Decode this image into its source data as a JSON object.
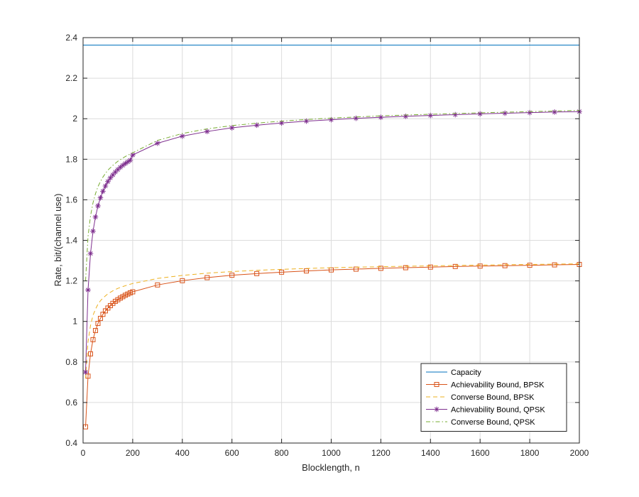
{
  "chart_data": {
    "type": "line",
    "title": "",
    "xlabel": "Blocklength, n",
    "ylabel": "Rate, bit/(channel use)",
    "xlim": [
      0,
      2000
    ],
    "ylim": [
      0.4,
      2.4
    ],
    "xticks": [
      0,
      200,
      400,
      600,
      800,
      1000,
      1200,
      1400,
      1600,
      1800,
      2000
    ],
    "yticks": [
      0.4,
      0.6,
      0.8,
      1,
      1.2,
      1.4,
      1.6,
      1.8,
      2,
      2.2,
      2.4
    ],
    "xtick_labels": [
      "0",
      "200",
      "400",
      "600",
      "800",
      "1000",
      "1200",
      "1400",
      "1600",
      "1800",
      "2000"
    ],
    "ytick_labels": [
      "0.4",
      "0.6",
      "0.8",
      "1",
      "1.2",
      "1.4",
      "1.6",
      "1.8",
      "2",
      "2.2",
      "2.4"
    ],
    "grid": true,
    "legend_position": "bottom-right",
    "series": [
      {
        "name": "Capacity",
        "color": "#0072BD",
        "line_style": "solid",
        "marker": "none",
        "x": [
          0,
          2000
        ],
        "y": [
          2.363,
          2.363
        ]
      },
      {
        "name": "Achievability Bound, BPSK",
        "color": "#D95319",
        "line_style": "solid",
        "marker": "square",
        "x": [
          10,
          20,
          30,
          40,
          50,
          60,
          70,
          80,
          90,
          100,
          110,
          120,
          130,
          140,
          150,
          160,
          170,
          180,
          190,
          200,
          300,
          400,
          500,
          600,
          700,
          800,
          900,
          1000,
          1100,
          1200,
          1300,
          1400,
          1500,
          1600,
          1700,
          1800,
          1900,
          2000
        ],
        "y": [
          0.48,
          0.73,
          0.84,
          0.91,
          0.955,
          0.99,
          1.015,
          1.035,
          1.052,
          1.066,
          1.078,
          1.089,
          1.099,
          1.107,
          1.115,
          1.122,
          1.129,
          1.135,
          1.141,
          1.146,
          1.18,
          1.201,
          1.216,
          1.228,
          1.236,
          1.243,
          1.249,
          1.254,
          1.258,
          1.262,
          1.265,
          1.268,
          1.271,
          1.273,
          1.275,
          1.277,
          1.279,
          1.281
        ]
      },
      {
        "name": "Converse Bound, BPSK",
        "color": "#EDB120",
        "line_style": "dashed",
        "marker": "none",
        "x": [
          10,
          20,
          30,
          40,
          50,
          60,
          70,
          80,
          90,
          100,
          120,
          140,
          160,
          180,
          200,
          300,
          400,
          500,
          600,
          700,
          800,
          900,
          1000,
          1200,
          1400,
          1600,
          1800,
          2000
        ],
        "y": [
          0.72,
          0.9,
          0.98,
          1.03,
          1.06,
          1.085,
          1.102,
          1.115,
          1.126,
          1.136,
          1.151,
          1.163,
          1.172,
          1.18,
          1.187,
          1.212,
          1.227,
          1.238,
          1.246,
          1.252,
          1.257,
          1.261,
          1.265,
          1.27,
          1.274,
          1.278,
          1.281,
          1.284
        ]
      },
      {
        "name": "Achievability Bound, QPSK",
        "color": "#7E2F8E",
        "line_style": "solid",
        "marker": "asterisk",
        "x": [
          10,
          20,
          30,
          40,
          50,
          60,
          70,
          80,
          90,
          100,
          110,
          120,
          130,
          140,
          150,
          160,
          170,
          180,
          190,
          200,
          300,
          400,
          500,
          600,
          700,
          800,
          900,
          1000,
          1100,
          1200,
          1300,
          1400,
          1500,
          1600,
          1700,
          1800,
          1900,
          2000
        ],
        "y": [
          0.75,
          1.155,
          1.335,
          1.445,
          1.515,
          1.57,
          1.61,
          1.642,
          1.668,
          1.69,
          1.708,
          1.723,
          1.737,
          1.749,
          1.76,
          1.77,
          1.779,
          1.787,
          1.795,
          1.821,
          1.879,
          1.914,
          1.937,
          1.955,
          1.968,
          1.979,
          1.988,
          1.995,
          2.002,
          2.007,
          2.012,
          2.016,
          2.02,
          2.024,
          2.027,
          2.03,
          2.033,
          2.035
        ]
      },
      {
        "name": "Converse Bound, QPSK",
        "color": "#77AC30",
        "line_style": "dashdot",
        "marker": "none",
        "x": [
          10,
          20,
          30,
          40,
          50,
          60,
          70,
          80,
          90,
          100,
          120,
          140,
          160,
          180,
          200,
          300,
          400,
          500,
          600,
          700,
          800,
          900,
          1000,
          1200,
          1400,
          1600,
          1800,
          2000
        ],
        "y": [
          1.2,
          1.42,
          1.52,
          1.585,
          1.63,
          1.665,
          1.69,
          1.712,
          1.73,
          1.746,
          1.77,
          1.79,
          1.806,
          1.82,
          1.832,
          1.893,
          1.927,
          1.95,
          1.966,
          1.978,
          1.988,
          1.996,
          2.003,
          2.014,
          2.022,
          2.029,
          2.035,
          2.041
        ]
      }
    ]
  }
}
